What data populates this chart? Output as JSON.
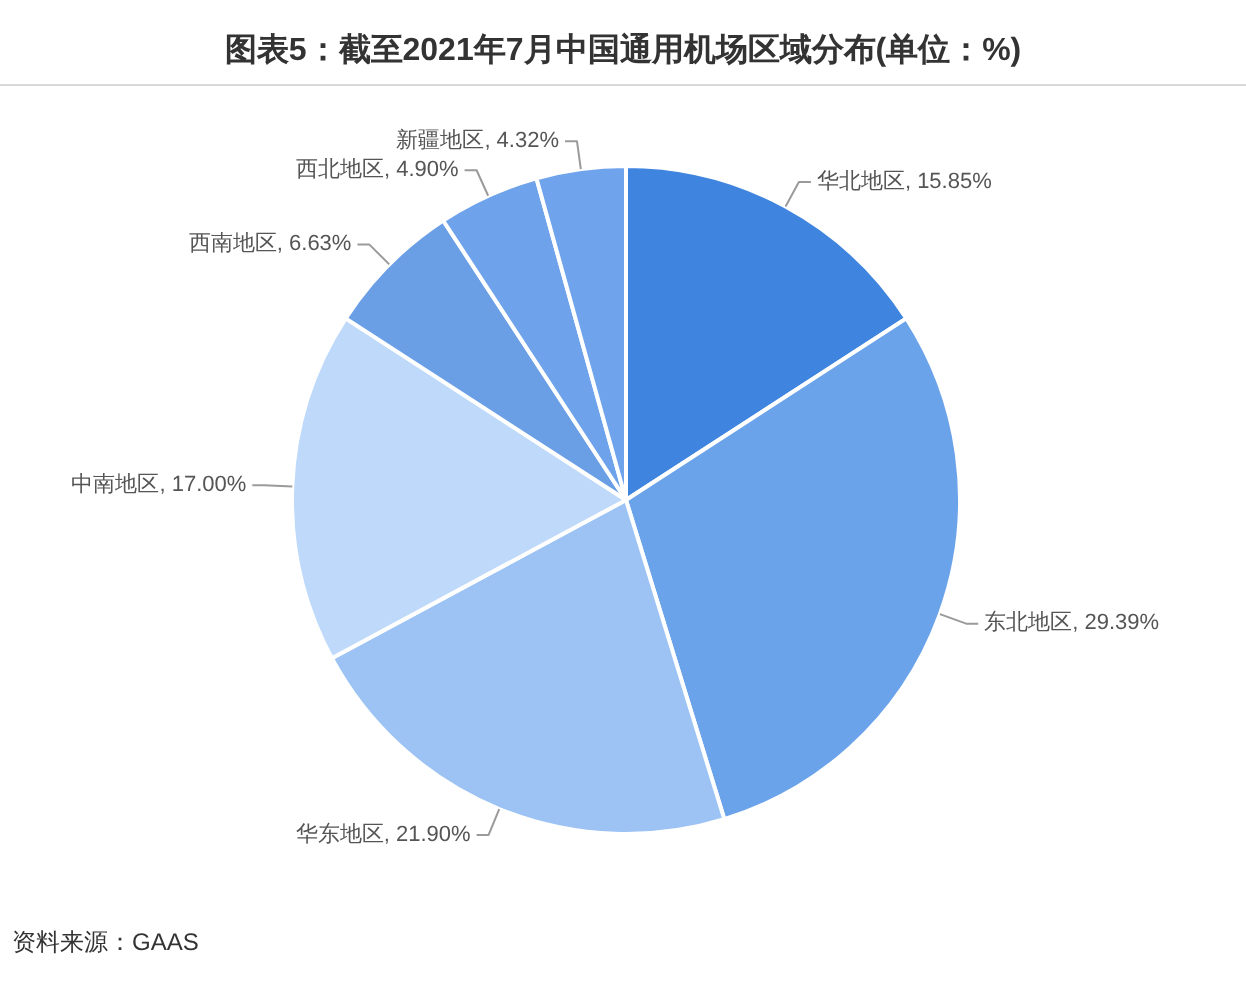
{
  "chart_data": {
    "type": "pie",
    "title": "图表5：截至2021年7月中国通用机场区域分布(单位：%)",
    "categories": [
      "华北地区",
      "东北地区",
      "华东地区",
      "中南地区",
      "西南地区",
      "西北地区",
      "新疆地区"
    ],
    "values": [
      15.85,
      29.39,
      21.9,
      17.0,
      6.63,
      4.9,
      4.32
    ],
    "value_labels": [
      "15.85%",
      "29.39%",
      "21.90%",
      "17.00%",
      "6.63%",
      "4.90%",
      "4.32%"
    ],
    "colors": [
      "#3f85e0",
      "#6ba3ea",
      "#9cc3f4",
      "#bed9fa",
      "#6a9fe6",
      "#6ea2ea",
      "#6fa4ec"
    ],
    "annotations": [
      "资料来源：GAAS"
    ]
  }
}
